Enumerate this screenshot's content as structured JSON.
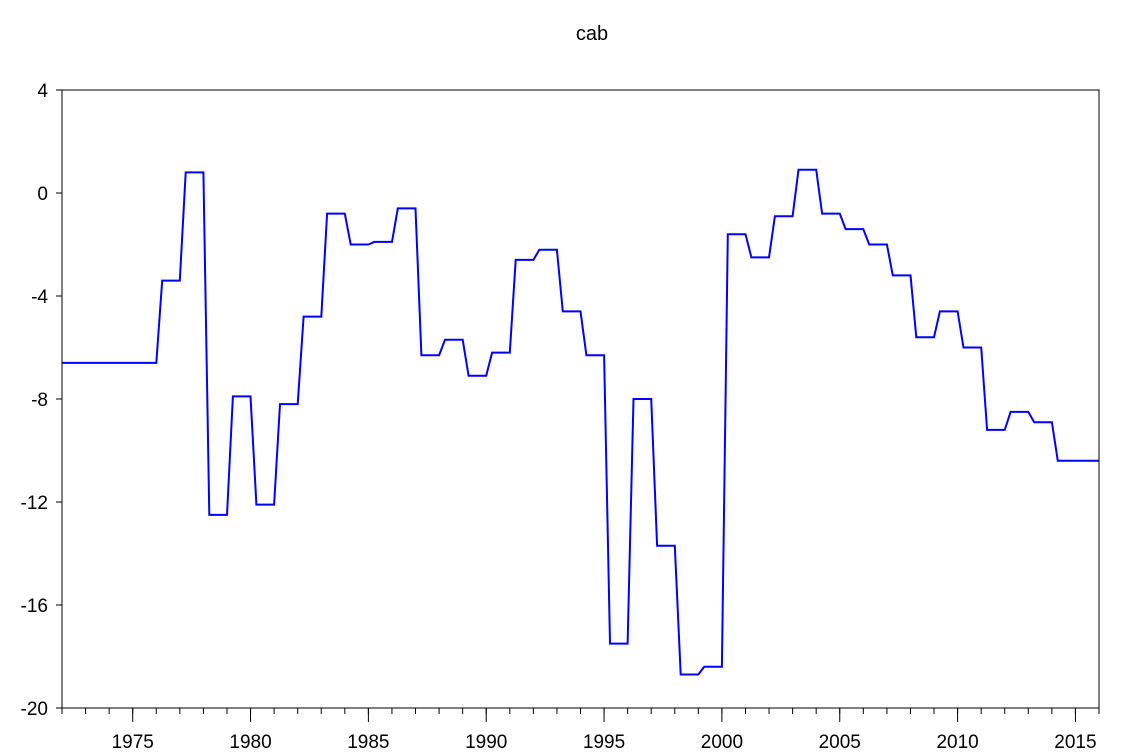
{
  "chart_data": {
    "type": "line",
    "title": "cab",
    "xlabel": "",
    "ylabel": "",
    "xlim": [
      1972.0,
      2016.0
    ],
    "ylim": [
      -20,
      4
    ],
    "y_ticks": [
      "4",
      "0",
      "-4",
      "-8",
      "-12",
      "-16",
      "-20"
    ],
    "x_ticks": [
      "1975",
      "1980",
      "1985",
      "1990",
      "1995",
      "2000",
      "2005",
      "2010",
      "2015"
    ],
    "frequency": "quarterly",
    "line_color": "#0000ff",
    "grid": false,
    "legend": "none",
    "series": [
      {
        "x": [
          1972.0,
          1976.0,
          1977.0,
          1978.0,
          1979.0,
          1980.0,
          1981.0,
          1982.0,
          1983.0,
          1984.0,
          1985.0,
          1986.0,
          1987.0,
          1988.0,
          1989.0,
          1990.0,
          1991.0,
          1992.0,
          1993.0,
          1994.0,
          1995.0,
          1996.0,
          1997.0,
          1998.0,
          1999.0,
          2000.0,
          2001.0,
          2002.0,
          2003.0,
          2004.0,
          2005.0,
          2006.0,
          2007.0,
          2008.0,
          2009.0,
          2010.0,
          2011.0,
          2012.0,
          2013.0,
          2014.0
        ],
        "values": [
          -6.6,
          -3.4,
          0.8,
          -12.5,
          -7.9,
          -12.1,
          -8.2,
          -4.8,
          -0.8,
          -2.0,
          -1.9,
          -0.6,
          -6.3,
          -5.7,
          -7.1,
          -6.2,
          -2.6,
          -2.2,
          -4.6,
          -6.3,
          -17.5,
          -8.0,
          -13.7,
          -18.7,
          -18.4,
          -1.6,
          -2.5,
          -0.9,
          0.9,
          -0.8,
          -1.4,
          -2.0,
          -3.2,
          -5.6,
          -4.6,
          -6.0,
          -9.2,
          -8.5,
          -8.9,
          -10.4
        ]
      }
    ]
  }
}
